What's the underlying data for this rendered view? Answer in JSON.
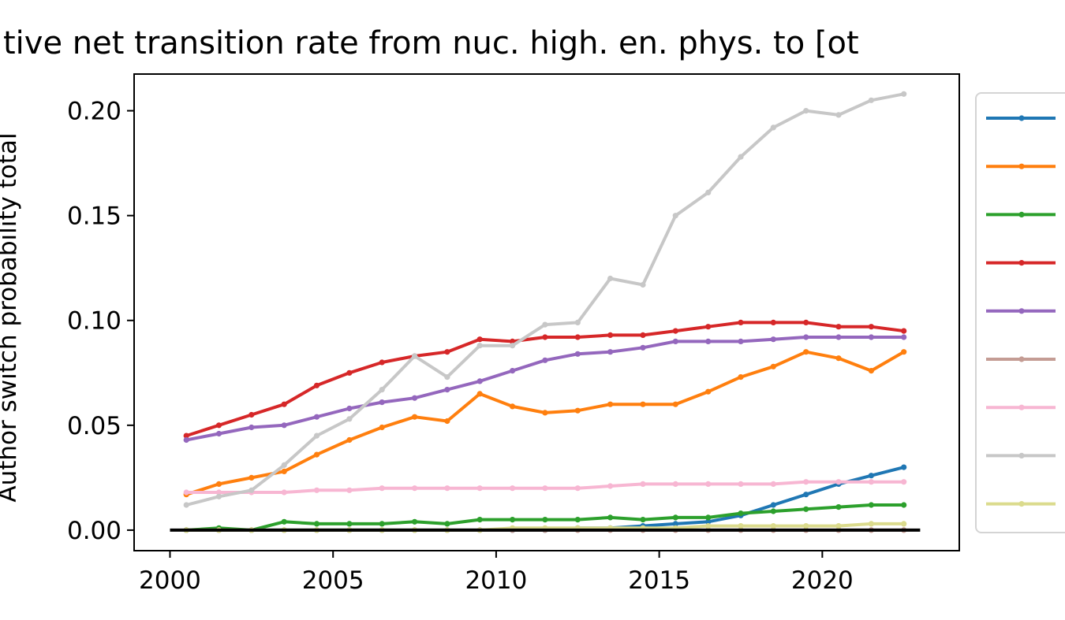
{
  "chart_data": {
    "type": "line",
    "title": "tive net transition rate from nuc. high. en. phys. to [ot",
    "xlabel": "",
    "ylabel": "Author switch probability total",
    "xlim": [
      1998.9,
      2024.2
    ],
    "ylim": [
      -0.0098,
      0.2175
    ],
    "xticks": [
      "2000",
      "2005",
      "2010",
      "2015",
      "2020"
    ],
    "yticks": [
      "0.00",
      "0.05",
      "0.10",
      "0.15",
      "0.20"
    ],
    "grid": false,
    "legend": "right-outside",
    "x": [
      2000.5,
      2001.5,
      2002.5,
      2003.5,
      2004.5,
      2005.5,
      2006.5,
      2007.5,
      2008.5,
      2009.5,
      2010.5,
      2011.5,
      2012.5,
      2013.5,
      2014.5,
      2015.5,
      2016.5,
      2017.5,
      2018.5,
      2019.5,
      2020.5,
      2021.5,
      2022.5
    ],
    "series": [
      {
        "color": "#1f77b4",
        "values": [
          0.0,
          0.0,
          0.0,
          0.0,
          0.0,
          0.0,
          0.0,
          0.0,
          0.0,
          0.0,
          0.0,
          0.0,
          0.001,
          0.001,
          0.002,
          0.003,
          0.004,
          0.007,
          0.012,
          0.017,
          0.022,
          0.026,
          0.03
        ]
      },
      {
        "color": "#ff7f0e",
        "values": [
          0.017,
          0.022,
          0.025,
          0.028,
          0.036,
          0.043,
          0.049,
          0.054,
          0.052,
          0.065,
          0.059,
          0.056,
          0.057,
          0.06,
          0.06,
          0.06,
          0.066,
          0.073,
          0.078,
          0.085,
          0.082,
          0.076,
          0.085
        ]
      },
      {
        "color": "#2ca02c",
        "values": [
          0.0,
          0.001,
          0.0,
          0.004,
          0.003,
          0.003,
          0.003,
          0.004,
          0.003,
          0.005,
          0.005,
          0.005,
          0.005,
          0.006,
          0.005,
          0.006,
          0.006,
          0.008,
          0.009,
          0.01,
          0.011,
          0.012,
          0.012
        ]
      },
      {
        "color": "#d62728",
        "values": [
          0.045,
          0.05,
          0.055,
          0.06,
          0.069,
          0.075,
          0.08,
          0.083,
          0.085,
          0.091,
          0.09,
          0.092,
          0.092,
          0.093,
          0.093,
          0.095,
          0.097,
          0.099,
          0.099,
          0.099,
          0.097,
          0.097,
          0.095
        ]
      },
      {
        "color": "#9467bd",
        "values": [
          0.043,
          0.046,
          0.049,
          0.05,
          0.054,
          0.058,
          0.061,
          0.063,
          0.067,
          0.071,
          0.076,
          0.081,
          0.084,
          0.085,
          0.087,
          0.09,
          0.09,
          0.09,
          0.091,
          0.092,
          0.092,
          0.092,
          0.092
        ]
      },
      {
        "color": "#c49c94",
        "values": [
          0.0,
          0.0,
          0.0,
          0.0,
          0.0,
          0.0,
          0.0,
          0.0,
          0.0,
          0.0,
          0.0,
          0.0,
          0.0,
          0.0,
          0.0,
          0.0,
          0.0,
          0.0,
          0.0,
          0.0,
          0.0,
          0.0,
          0.0
        ]
      },
      {
        "color": "#f7b6d2",
        "values": [
          0.018,
          0.018,
          0.018,
          0.018,
          0.019,
          0.019,
          0.02,
          0.02,
          0.02,
          0.02,
          0.02,
          0.02,
          0.02,
          0.021,
          0.022,
          0.022,
          0.022,
          0.022,
          0.022,
          0.023,
          0.023,
          0.023,
          0.023
        ]
      },
      {
        "color": "#c7c7c7",
        "values": [
          0.012,
          0.016,
          0.019,
          0.031,
          0.045,
          0.053,
          0.067,
          0.083,
          0.073,
          0.088,
          0.088,
          0.098,
          0.099,
          0.12,
          0.117,
          0.15,
          0.161,
          0.178,
          0.192,
          0.2,
          0.198,
          0.205,
          0.208
        ]
      },
      {
        "color": "#dbdb8d",
        "values": [
          0.0,
          0.0,
          0.0,
          0.0,
          0.0,
          0.0,
          0.0,
          0.0,
          0.0,
          0.0,
          0.001,
          0.001,
          0.001,
          0.001,
          0.001,
          0.001,
          0.002,
          0.002,
          0.002,
          0.002,
          0.002,
          0.003,
          0.003
        ]
      }
    ],
    "baseline": {
      "color": "#000000",
      "x": [
        2000,
        2023
      ],
      "y": 0
    }
  }
}
